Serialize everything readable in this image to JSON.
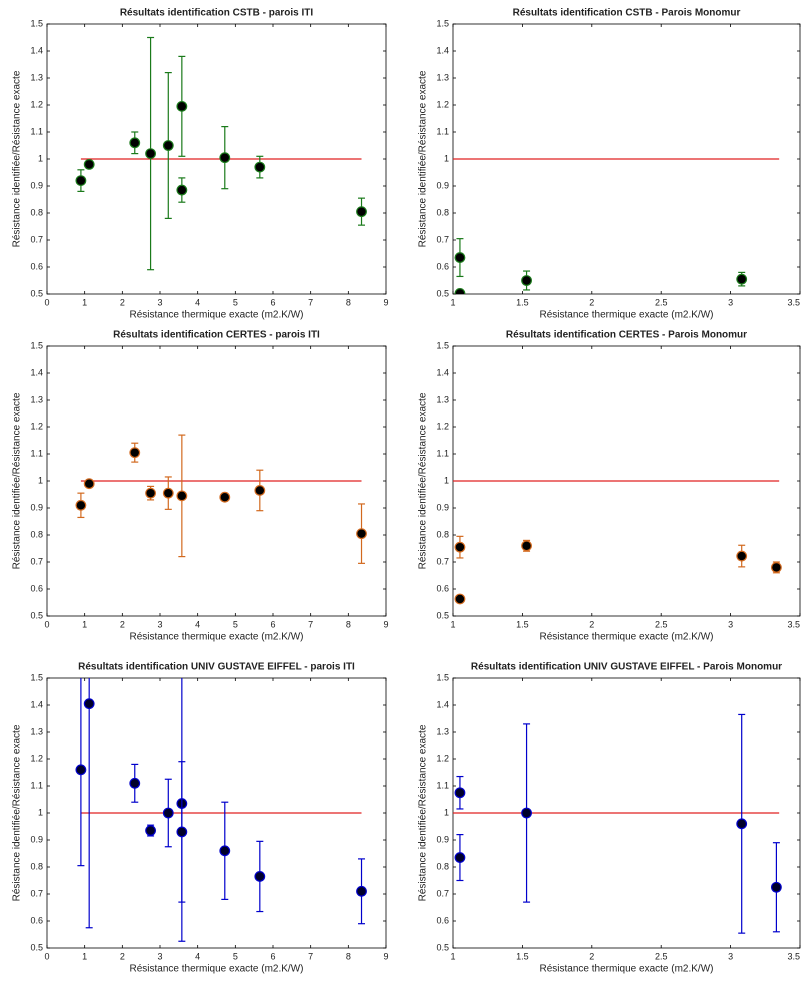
{
  "chart_data": [
    {
      "type": "scatter",
      "title": "Résultats identification CSTB - parois ITI",
      "x_label": "Résistance thermique exacte (m2.K/W)",
      "y_label": "Résistance identifiée/Résistance exacte",
      "xlim": [
        0,
        9
      ],
      "ylim": [
        0.5,
        1.5
      ],
      "xticks": [
        0,
        1,
        2,
        3,
        4,
        5,
        6,
        7,
        8,
        9
      ],
      "yticks": [
        0.5,
        0.6,
        0.7,
        0.8,
        0.9,
        1,
        1.1,
        1.2,
        1.3,
        1.4,
        1.5
      ],
      "reference_y": 1,
      "reference_xrange": [
        0.9,
        8.35
      ],
      "reference_color": "#e02020",
      "color": "#1a7a1a",
      "marker_color": "#000000",
      "x": [
        0.9,
        1.12,
        2.33,
        2.75,
        3.22,
        3.58,
        3.58,
        4.72,
        5.65,
        8.35
      ],
      "values": [
        0.92,
        0.98,
        1.06,
        1.02,
        1.05,
        1.195,
        0.885,
        1.005,
        0.97,
        0.805
      ],
      "errors": [
        0.04,
        0.01,
        0.04,
        0.43,
        0.27,
        0.185,
        0.045,
        0.115,
        0.04,
        0.05
      ]
    },
    {
      "type": "scatter",
      "title": "Résultats identification CSTB - Parois Monomur",
      "x_label": "Résistance thermique exacte (m2.K/W)",
      "y_label": "Résistance identifiée/Résistance exacte",
      "xlim": [
        1,
        3.5
      ],
      "ylim": [
        0.5,
        1.5
      ],
      "xticks": [
        1,
        1.5,
        2,
        2.5,
        3,
        3.5
      ],
      "yticks": [
        0.5,
        0.6,
        0.7,
        0.8,
        0.9,
        1,
        1.1,
        1.2,
        1.3,
        1.4,
        1.5
      ],
      "reference_y": 1,
      "reference_xrange": [
        1,
        3.35
      ],
      "reference_color": "#e02020",
      "color": "#1a7a1a",
      "marker_color": "#000000",
      "x": [
        1.05,
        1.05,
        1.53,
        3.08
      ],
      "values": [
        0.635,
        0.502,
        0.55,
        0.555
      ],
      "errors": [
        0.07,
        0.005,
        0.035,
        0.025
      ]
    },
    {
      "type": "scatter",
      "title": "Résultats identification CERTES - parois ITI",
      "x_label": "Résistance thermique exacte (m2.K/W)",
      "y_label": "Résistance identifiée/Résistance exacte",
      "xlim": [
        0,
        9
      ],
      "ylim": [
        0.5,
        1.5
      ],
      "xticks": [
        0,
        1,
        2,
        3,
        4,
        5,
        6,
        7,
        8,
        9
      ],
      "yticks": [
        0.5,
        0.6,
        0.7,
        0.8,
        0.9,
        1,
        1.1,
        1.2,
        1.3,
        1.4,
        1.5
      ],
      "reference_y": 1,
      "reference_xrange": [
        0.9,
        8.35
      ],
      "reference_color": "#e02020",
      "color": "#d2691e",
      "marker_color": "#000000",
      "x": [
        0.9,
        1.12,
        2.33,
        2.75,
        3.22,
        3.58,
        4.72,
        5.65,
        8.35
      ],
      "values": [
        0.91,
        0.99,
        1.105,
        0.955,
        0.955,
        0.945,
        0.94,
        0.965,
        0.805
      ],
      "errors": [
        0.045,
        0.005,
        0.035,
        0.025,
        0.06,
        0.225,
        0.01,
        0.075,
        0.11
      ]
    },
    {
      "type": "scatter",
      "title": "Résultats identification CERTES - Parois Monomur",
      "x_label": "Résistance thermique exacte (m2.K/W)",
      "y_label": "Résistance identifiée/Résistance exacte",
      "xlim": [
        1,
        3.5
      ],
      "ylim": [
        0.5,
        1.5
      ],
      "xticks": [
        1,
        1.5,
        2,
        2.5,
        3,
        3.5
      ],
      "yticks": [
        0.5,
        0.6,
        0.7,
        0.8,
        0.9,
        1,
        1.1,
        1.2,
        1.3,
        1.4,
        1.5
      ],
      "reference_y": 1,
      "reference_xrange": [
        1,
        3.35
      ],
      "reference_color": "#e02020",
      "color": "#d2691e",
      "marker_color": "#000000",
      "x": [
        1.05,
        1.05,
        1.53,
        3.08,
        3.33
      ],
      "values": [
        0.755,
        0.563,
        0.76,
        0.722,
        0.68
      ],
      "errors": [
        0.04,
        0.01,
        0.02,
        0.04,
        0.02
      ]
    },
    {
      "type": "scatter",
      "title": "Résultats identification UNIV GUSTAVE EIFFEL - parois ITI",
      "x_label": "Résistance thermique exacte (m2.K/W)",
      "y_label": "Résistance identifiée/Résistance exacte",
      "xlim": [
        0,
        9
      ],
      "ylim": [
        0.5,
        1.5
      ],
      "xticks": [
        0,
        1,
        2,
        3,
        4,
        5,
        6,
        7,
        8,
        9
      ],
      "yticks": [
        0.5,
        0.6,
        0.7,
        0.8,
        0.9,
        1,
        1.1,
        1.2,
        1.3,
        1.4,
        1.5
      ],
      "reference_y": 1,
      "reference_xrange": [
        0.9,
        8.35
      ],
      "reference_color": "#e02020",
      "color": "#0000cc",
      "marker_color": "#00002a",
      "x": [
        0.9,
        1.12,
        2.33,
        2.75,
        3.22,
        3.58,
        3.58,
        4.72,
        5.65,
        8.35
      ],
      "values": [
        1.16,
        1.405,
        1.11,
        0.935,
        1.0,
        1.035,
        0.93,
        0.86,
        0.765,
        0.71
      ],
      "errors": [
        0.355,
        0.83,
        0.07,
        0.02,
        0.125,
        0.51,
        0.26,
        0.18,
        0.13,
        0.12
      ]
    },
    {
      "type": "scatter",
      "title": "Résultats identification UNIV GUSTAVE EIFFEL - Parois Monomur",
      "x_label": "Résistance thermique exacte (m2.K/W)",
      "y_label": "Résistance identifiée/Résistance exacte",
      "xlim": [
        1,
        3.5
      ],
      "ylim": [
        0.5,
        1.5
      ],
      "xticks": [
        1,
        1.5,
        2,
        2.5,
        3,
        3.5
      ],
      "yticks": [
        0.5,
        0.6,
        0.7,
        0.8,
        0.9,
        1,
        1.1,
        1.2,
        1.3,
        1.4,
        1.5
      ],
      "reference_y": 1,
      "reference_xrange": [
        1,
        3.35
      ],
      "reference_color": "#e02020",
      "color": "#0000cc",
      "marker_color": "#00002a",
      "x": [
        1.05,
        1.05,
        1.53,
        3.08,
        3.33
      ],
      "values": [
        1.075,
        0.835,
        1.0,
        0.96,
        0.725
      ],
      "errors": [
        0.06,
        0.085,
        0.33,
        0.405,
        0.165
      ]
    }
  ]
}
